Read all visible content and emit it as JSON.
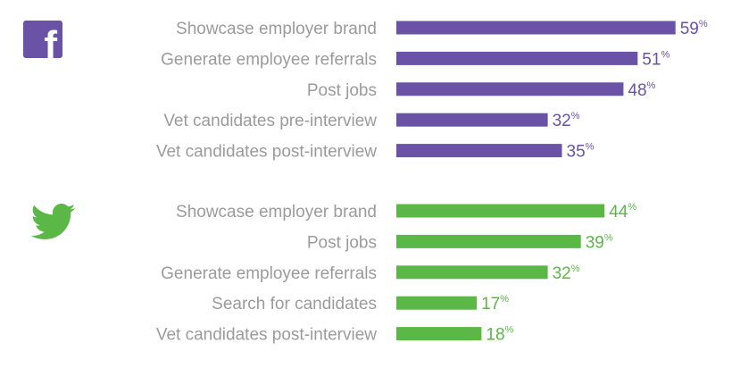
{
  "icons": {
    "facebook": "facebook-icon",
    "twitter": "twitter-bird-icon"
  },
  "colors": {
    "facebook": "#6a53a6",
    "twitter": "#5bb746",
    "label": "#9b9b9b"
  },
  "chart_data": [
    {
      "type": "bar",
      "orientation": "horizontal",
      "network": "facebook",
      "categories": [
        "Showcase employer brand",
        "Generate employee referrals",
        "Post jobs",
        "Vet candidates pre-interview",
        "Vet candidates post-interview"
      ],
      "values": [
        59,
        51,
        48,
        32,
        35
      ],
      "value_suffix": "%",
      "color": "#6a53a6"
    },
    {
      "type": "bar",
      "orientation": "horizontal",
      "network": "twitter",
      "categories": [
        "Showcase employer brand",
        "Post jobs",
        "Generate employee referrals",
        "Search for candidates",
        "Vet candidates post-interview"
      ],
      "values": [
        44,
        39,
        32,
        17,
        18
      ],
      "value_suffix": "%",
      "color": "#5bb746"
    }
  ]
}
